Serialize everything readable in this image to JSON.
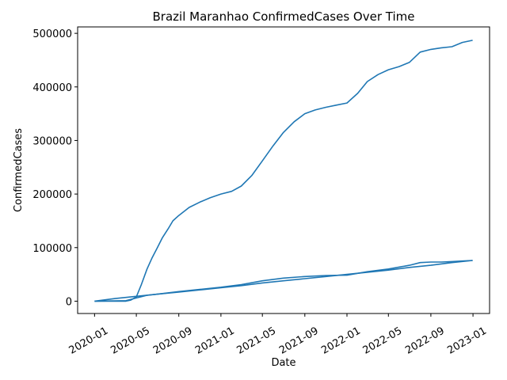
{
  "chart_data": {
    "type": "line",
    "title": "Brazil Maranhao ConfirmedCases Over Time",
    "xlabel": "Date",
    "ylabel": "ConfirmedCases",
    "x_ticks": [
      "2020-01",
      "2020-05",
      "2020-09",
      "2021-01",
      "2021-05",
      "2021-09",
      "2022-01",
      "2022-05",
      "2022-09",
      "2023-01"
    ],
    "y_ticks": [
      0,
      100000,
      200000,
      300000,
      400000,
      500000
    ],
    "ylim": [
      -23000,
      512000
    ],
    "xlim": [
      "2019-11-13",
      "2023-02-18"
    ],
    "grid": false,
    "line_color": "#1f77b4",
    "series": [
      {
        "x": [
          "2020-01-01",
          "2020-02-01",
          "2020-03-01",
          "2020-04-01",
          "2020-04-15",
          "2020-05-01",
          "2020-05-15",
          "2020-06-01",
          "2020-06-15",
          "2020-07-01",
          "2020-07-15",
          "2020-08-01",
          "2020-08-15",
          "2020-09-01",
          "2020-10-01",
          "2020-11-01",
          "2020-12-01",
          "2021-01-01",
          "2021-02-01",
          "2021-03-01",
          "2021-04-01",
          "2021-05-01",
          "2021-06-01",
          "2021-07-01",
          "2021-08-01",
          "2021-09-01",
          "2021-10-01",
          "2021-11-01",
          "2021-12-01",
          "2022-01-01",
          "2022-02-01",
          "2022-03-01",
          "2022-04-01",
          "2022-05-01",
          "2022-06-01",
          "2022-07-01",
          "2022-08-01",
          "2022-09-01",
          "2022-10-01",
          "2022-11-01",
          "2022-12-01",
          "2022-12-31"
        ],
        "y": [
          0,
          0,
          0,
          0,
          2000,
          8000,
          30000,
          60000,
          80000,
          100000,
          118000,
          135000,
          150000,
          160000,
          175000,
          185000,
          193000,
          200000,
          205000,
          215000,
          235000,
          262000,
          290000,
          315000,
          335000,
          350000,
          357000,
          362000,
          366000,
          370000,
          388000,
          410000,
          423000,
          432000,
          438000,
          446000,
          465000,
          470000,
          473000,
          475000,
          483000,
          487000
        ]
      },
      {
        "x": [
          "2020-01-01",
          "2020-04-01",
          "2020-05-01",
          "2020-06-01",
          "2020-07-01",
          "2020-09-01",
          "2020-11-01",
          "2021-01-01",
          "2021-03-01",
          "2021-05-01",
          "2021-07-01",
          "2021-09-01",
          "2021-11-01",
          "2022-01-01",
          "2022-03-01",
          "2022-05-01",
          "2022-07-01",
          "2022-08-01",
          "2022-09-01",
          "2022-10-01",
          "2022-11-01",
          "2022-12-01",
          "2022-12-31"
        ],
        "y": [
          0,
          1000,
          6000,
          11000,
          13000,
          18000,
          22000,
          26000,
          31000,
          38000,
          43000,
          46000,
          48000,
          48500,
          55000,
          60000,
          67000,
          72000,
          73000,
          73000,
          74000,
          75000,
          76000
        ]
      },
      {
        "x": [
          "2020-01-01",
          "2020-03-01",
          "2020-05-01",
          "2020-07-01",
          "2020-09-01",
          "2020-11-01",
          "2021-01-01",
          "2021-03-01",
          "2021-05-01",
          "2021-07-01",
          "2021-09-01",
          "2021-11-01",
          "2022-01-01",
          "2022-03-01",
          "2022-05-01",
          "2022-07-01",
          "2022-09-01",
          "2022-11-01",
          "2022-12-31"
        ],
        "y": [
          0,
          5000,
          9000,
          13000,
          17000,
          21000,
          25000,
          29000,
          34000,
          38000,
          42000,
          46000,
          50000,
          54000,
          58000,
          63000,
          67000,
          72000,
          76000
        ]
      }
    ]
  }
}
